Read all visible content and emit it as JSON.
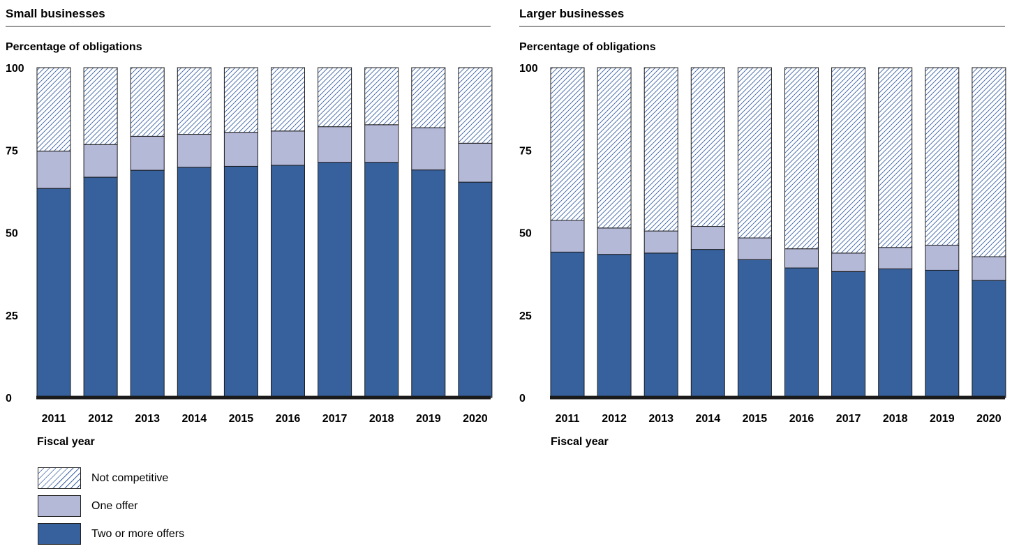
{
  "colors": {
    "two_or_more": "#36619d",
    "one_offer": "#b5b9d8",
    "not_competitive_hatch": "#3b62a6",
    "baseline": "#1a1a1a"
  },
  "legend": [
    {
      "key": "not_competitive",
      "label": "Not competitive",
      "swatch": "hatch"
    },
    {
      "key": "one_offer",
      "label": "One offer",
      "swatch": "light"
    },
    {
      "key": "two_or_more",
      "label": "Two or more offers",
      "swatch": "dark"
    }
  ],
  "chart_data": [
    {
      "type": "bar",
      "stacked": true,
      "title": "Small businesses",
      "ylabel": "Percentage of obligations",
      "xlabel": "Fiscal year",
      "ylim": [
        0,
        100
      ],
      "yticks": [
        0,
        25,
        50,
        75,
        100
      ],
      "categories": [
        "2011",
        "2012",
        "2013",
        "2014",
        "2015",
        "2016",
        "2017",
        "2018",
        "2019",
        "2020"
      ],
      "series": [
        {
          "name": "Two or more offers",
          "values": [
            63.4,
            66.8,
            68.9,
            69.8,
            70.1,
            70.4,
            71.3,
            71.3,
            69.0,
            65.3
          ]
        },
        {
          "name": "One offer",
          "values": [
            11.3,
            9.9,
            10.3,
            10.0,
            10.3,
            10.4,
            10.8,
            11.4,
            12.8,
            11.8
          ]
        },
        {
          "name": "Not competitive",
          "values": [
            25.3,
            23.3,
            20.8,
            20.2,
            19.6,
            19.2,
            17.9,
            17.3,
            18.2,
            22.9
          ]
        }
      ]
    },
    {
      "type": "bar",
      "stacked": true,
      "title": "Larger businesses",
      "ylabel": "Percentage of obligations",
      "xlabel": "Fiscal year",
      "ylim": [
        0,
        100
      ],
      "yticks": [
        0,
        25,
        50,
        75,
        100
      ],
      "categories": [
        "2011",
        "2012",
        "2013",
        "2014",
        "2015",
        "2016",
        "2017",
        "2018",
        "2019",
        "2020"
      ],
      "series": [
        {
          "name": "Two or more offers",
          "values": [
            44.1,
            43.4,
            43.8,
            44.9,
            41.8,
            39.3,
            38.2,
            39.0,
            38.6,
            35.5
          ]
        },
        {
          "name": "One offer",
          "values": [
            9.6,
            8.0,
            6.7,
            7.0,
            6.6,
            5.8,
            5.6,
            6.5,
            7.6,
            7.2
          ]
        },
        {
          "name": "Not competitive",
          "values": [
            46.3,
            48.6,
            49.5,
            48.1,
            51.6,
            54.9,
            56.2,
            54.5,
            53.8,
            57.3
          ]
        }
      ]
    }
  ]
}
